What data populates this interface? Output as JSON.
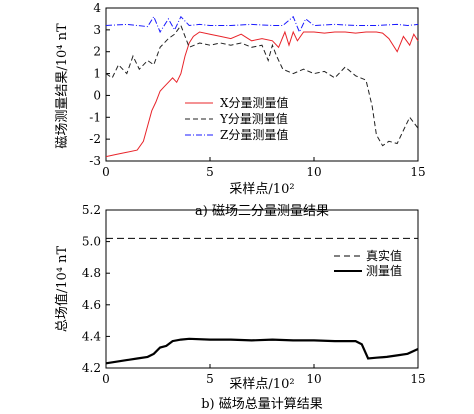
{
  "chart_data": [
    {
      "type": "line",
      "caption": "a)  磁场三分量测量结果",
      "xlabel": "采样点/10²",
      "ylabel": "磁场测量结果/10⁴ nT",
      "xlim": [
        0,
        15
      ],
      "ylim": [
        -3,
        4
      ],
      "xticks": [
        0,
        5,
        10,
        15
      ],
      "yticks": [
        -3,
        -2,
        -1,
        0,
        1,
        2,
        3,
        4
      ],
      "legend_position": "center",
      "series": [
        {
          "name": "X分量测量值",
          "color": "#e8242a",
          "style": "solid",
          "x": [
            0,
            0.5,
            1,
            1.5,
            1.8,
            2.0,
            2.2,
            2.4,
            2.6,
            2.8,
            3.0,
            3.2,
            3.4,
            3.6,
            3.8,
            4.0,
            4.2,
            4.5,
            5.0,
            5.5,
            6.0,
            6.5,
            7.0,
            7.5,
            8.0,
            8.3,
            8.6,
            8.8,
            9.0,
            9.2,
            9.5,
            10,
            10.5,
            11,
            11.5,
            12,
            12.5,
            13,
            13.3,
            13.6,
            14,
            14.3,
            14.6,
            14.8,
            15
          ],
          "y": [
            -2.8,
            -2.7,
            -2.6,
            -2.5,
            -2.1,
            -1.4,
            -0.7,
            -0.3,
            0.2,
            0.4,
            0.6,
            0.8,
            0.6,
            1.0,
            1.8,
            2.4,
            2.7,
            2.9,
            2.8,
            2.7,
            2.6,
            2.8,
            2.5,
            2.6,
            2.5,
            2.2,
            2.9,
            2.3,
            2.9,
            2.5,
            2.9,
            2.9,
            2.85,
            2.9,
            2.9,
            2.85,
            2.9,
            2.9,
            2.85,
            2.6,
            2.0,
            2.7,
            2.3,
            2.8,
            2.5
          ]
        },
        {
          "name": "Y分量测量值",
          "color": "#222222",
          "style": "dashed",
          "x": [
            0,
            0.3,
            0.6,
            1.0,
            1.3,
            1.6,
            2.0,
            2.3,
            2.6,
            3.0,
            3.3,
            3.6,
            4.0,
            4.5,
            5.0,
            5.5,
            6.0,
            6.5,
            7.0,
            7.5,
            7.8,
            8.0,
            8.2,
            8.5,
            9.0,
            9.5,
            10.0,
            10.5,
            11.0,
            11.5,
            12.0,
            12.5,
            12.8,
            13.0,
            13.3,
            13.6,
            14.0,
            14.3,
            14.6,
            15.0
          ],
          "y": [
            1.0,
            0.8,
            1.4,
            1.0,
            1.8,
            1.2,
            1.6,
            1.4,
            2.2,
            2.6,
            2.8,
            3.2,
            2.2,
            2.4,
            2.3,
            2.4,
            2.3,
            2.4,
            2.2,
            2.3,
            1.6,
            2.3,
            1.8,
            1.2,
            1.0,
            1.2,
            1.0,
            1.1,
            0.8,
            1.3,
            0.9,
            0.7,
            -0.5,
            -1.8,
            -2.3,
            -2.1,
            -2.2,
            -1.6,
            -1.0,
            -1.5
          ]
        },
        {
          "name": "Z分量测量值",
          "color": "#1a1aff",
          "style": "dashdot",
          "x": [
            0,
            1,
            2,
            2.3,
            2.6,
            3.0,
            3.3,
            3.6,
            4.0,
            4.5,
            5,
            6,
            7,
            8,
            8.5,
            9.0,
            9.3,
            9.6,
            10,
            11,
            12,
            13,
            14,
            14.5,
            15
          ],
          "y": [
            3.2,
            3.25,
            3.15,
            3.6,
            2.9,
            3.5,
            3.0,
            3.6,
            3.2,
            3.25,
            3.2,
            3.2,
            3.25,
            3.2,
            3.2,
            3.6,
            2.9,
            3.5,
            3.2,
            3.25,
            3.2,
            3.2,
            3.25,
            3.2,
            3.25
          ]
        }
      ]
    },
    {
      "type": "line",
      "caption": "b)  磁场总量计算结果",
      "xlabel": "采样点/10²",
      "ylabel": "总场值/10⁴ nT",
      "xlim": [
        0,
        15
      ],
      "ylim": [
        4.2,
        5.2
      ],
      "xticks": [
        0,
        5,
        10,
        15
      ],
      "yticks": [
        4.2,
        4.4,
        4.6,
        4.8,
        5.0,
        5.2
      ],
      "legend_position": "right",
      "series": [
        {
          "name": "真实值",
          "color": "#000000",
          "style": "dashed",
          "x": [
            0,
            15
          ],
          "y": [
            5.02,
            5.02
          ]
        },
        {
          "name": "测量值",
          "color": "#000000",
          "style": "solid",
          "x": [
            0,
            0.5,
            1.0,
            1.5,
            2.0,
            2.3,
            2.6,
            2.9,
            3.2,
            3.6,
            4.0,
            5,
            6,
            7,
            8,
            9,
            10,
            11,
            12,
            12.3,
            12.6,
            13,
            13.5,
            14,
            14.5,
            15
          ],
          "y": [
            4.23,
            4.24,
            4.25,
            4.26,
            4.27,
            4.29,
            4.33,
            4.34,
            4.37,
            4.38,
            4.385,
            4.38,
            4.38,
            4.375,
            4.38,
            4.375,
            4.375,
            4.37,
            4.37,
            4.35,
            4.26,
            4.265,
            4.27,
            4.28,
            4.29,
            4.32
          ]
        }
      ]
    }
  ]
}
